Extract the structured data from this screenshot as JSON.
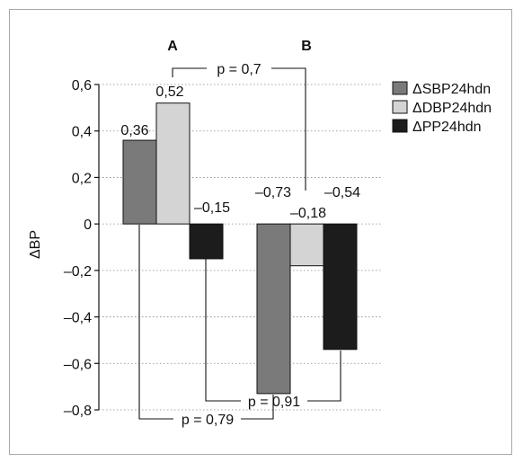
{
  "chart_data": {
    "type": "bar",
    "categories": [
      "A",
      "B"
    ],
    "ylabel": "ΔBP",
    "ylim": [
      -0.8,
      0.6
    ],
    "yticks": [
      0.6,
      0.4,
      0.2,
      0,
      -0.2,
      -0.4,
      -0.6,
      -0.8
    ],
    "ytick_labels": [
      "0,6",
      "0,4",
      "0,2",
      "0",
      "–0,2",
      "–0,4",
      "–0,6",
      "–0,8"
    ],
    "grid": "horizontal dotted",
    "legend_position": "right",
    "series": [
      {
        "name": "ΔSBP24hdn",
        "color": "#7a7a7a",
        "values": [
          0.36,
          -0.73
        ],
        "labels": [
          "0,36",
          "–0,73"
        ]
      },
      {
        "name": "ΔDBP24hdn",
        "color": "#d4d4d4",
        "values": [
          0.52,
          -0.18
        ],
        "labels": [
          "0,52",
          "–0,18"
        ]
      },
      {
        "name": "ΔPP24hdn",
        "color": "#1c1c1c",
        "values": [
          -0.15,
          -0.54
        ],
        "labels": [
          "–0,15",
          "–0,54"
        ]
      }
    ],
    "annotations": {
      "p_top": "p = 0,7",
      "p_bottom_right": "p = 0,91",
      "p_bottom_left": "p = 0,79"
    }
  }
}
